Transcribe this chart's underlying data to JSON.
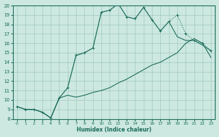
{
  "xlabel": "Humidex (Indice chaleur)",
  "bg_color": "#cce8e0",
  "line_color": "#1a6b5a",
  "xlim": [
    -0.5,
    23.5
  ],
  "ylim": [
    8,
    20
  ],
  "xticks": [
    0,
    1,
    2,
    3,
    4,
    5,
    6,
    7,
    8,
    9,
    10,
    11,
    12,
    13,
    14,
    15,
    16,
    17,
    18,
    19,
    20,
    21,
    22,
    23
  ],
  "yticks": [
    8,
    9,
    10,
    11,
    12,
    13,
    14,
    15,
    16,
    17,
    18,
    19,
    20
  ],
  "line_upper_x": [
    0,
    1,
    2,
    3,
    4,
    5,
    6,
    7,
    8,
    9,
    10,
    11,
    12,
    13,
    14,
    15,
    16,
    17,
    18,
    19,
    20,
    21,
    22,
    23
  ],
  "line_upper_y": [
    9.3,
    9.0,
    9.0,
    8.7,
    8.1,
    10.2,
    11.3,
    14.8,
    15.0,
    15.5,
    19.3,
    19.5,
    20.2,
    18.8,
    18.6,
    19.8,
    18.5,
    17.3,
    18.3,
    19.0,
    17.0,
    16.3,
    16.0,
    15.2
  ],
  "line_mid_x": [
    0,
    1,
    2,
    3,
    4,
    5,
    6,
    7,
    8,
    9,
    10,
    11,
    12,
    13,
    14,
    15,
    16,
    17,
    18,
    19,
    20,
    21,
    22,
    23
  ],
  "line_mid_y": [
    9.3,
    9.0,
    9.0,
    8.7,
    8.1,
    10.2,
    11.3,
    14.7,
    15.0,
    15.5,
    19.3,
    19.5,
    20.2,
    18.8,
    18.6,
    19.8,
    18.5,
    17.3,
    18.3,
    16.7,
    16.3,
    16.3,
    15.8,
    15.2
  ],
  "line_low_x": [
    0,
    1,
    2,
    3,
    4,
    5,
    6,
    7,
    8,
    9,
    10,
    11,
    12,
    13,
    14,
    15,
    16,
    17,
    18,
    19,
    20,
    21,
    22,
    23
  ],
  "line_low_y": [
    9.3,
    9.0,
    9.0,
    8.7,
    8.1,
    10.2,
    10.5,
    10.3,
    10.5,
    10.8,
    11.0,
    11.3,
    11.8,
    12.2,
    12.7,
    13.2,
    13.7,
    14.0,
    14.5,
    15.0,
    16.0,
    16.5,
    16.0,
    14.5
  ],
  "grid_color": "#a0c8be",
  "marker": "+"
}
